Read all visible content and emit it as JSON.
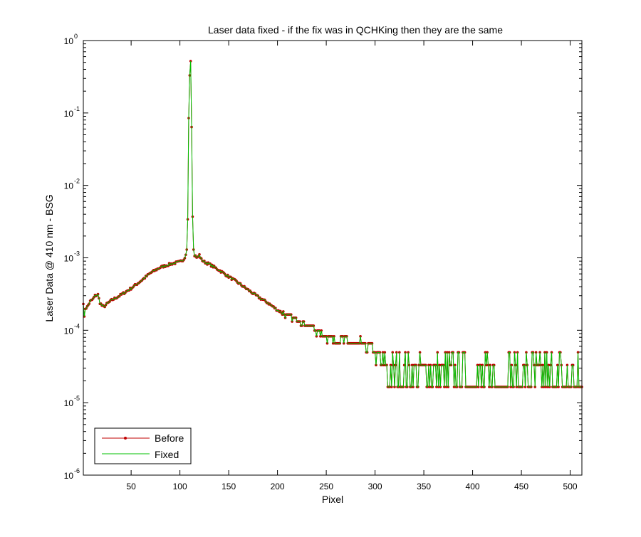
{
  "chart_data": {
    "type": "line",
    "title": "Laser data fixed - if the fix was in QCHKing then they are the same",
    "xlabel": "Pixel",
    "ylabel": "Laser Data @ 410 nm - BSG",
    "xlim": [
      1,
      512
    ],
    "ylim": [
      1e-06,
      1
    ],
    "yscale": "log",
    "grid": false,
    "legend_position": "bottom-left",
    "x_ticks": [
      50,
      100,
      150,
      200,
      250,
      300,
      350,
      400,
      450,
      500
    ],
    "x_tick_labels": [
      "50",
      "100",
      "150",
      "200",
      "250",
      "300",
      "350",
      "400",
      "450",
      "500"
    ],
    "y_ticks": [
      {
        "base": "10",
        "exp": "0"
      },
      {
        "base": "10",
        "exp": "-1"
      },
      {
        "base": "10",
        "exp": "-2"
      },
      {
        "base": "10",
        "exp": "-3"
      },
      {
        "base": "10",
        "exp": "-4"
      },
      {
        "base": "10",
        "exp": "-5"
      },
      {
        "base": "10",
        "exp": "-6"
      }
    ],
    "anchors": [
      [
        1,
        0.00024
      ],
      [
        2,
        0.00015
      ],
      [
        3,
        0.0002
      ],
      [
        5,
        0.00021
      ],
      [
        8,
        0.00025
      ],
      [
        11,
        0.00027
      ],
      [
        13,
        0.0003
      ],
      [
        16,
        0.00031
      ],
      [
        18,
        0.00024
      ],
      [
        20,
        0.00022
      ],
      [
        22,
        0.00021
      ],
      [
        25,
        0.00023
      ],
      [
        30,
        0.00026
      ],
      [
        40,
        0.00031
      ],
      [
        50,
        0.00038
      ],
      [
        60,
        0.00048
      ],
      [
        70,
        0.00062
      ],
      [
        80,
        0.00074
      ],
      [
        90,
        0.00082
      ],
      [
        100,
        0.00088
      ],
      [
        104,
        0.00096
      ],
      [
        106,
        0.0011
      ],
      [
        107,
        0.0013
      ],
      [
        108,
        0.0034
      ],
      [
        109,
        0.085
      ],
      [
        110,
        0.33
      ],
      [
        111,
        0.52
      ],
      [
        112,
        0.064
      ],
      [
        113,
        0.0037
      ],
      [
        114,
        0.0013
      ],
      [
        115,
        0.0011
      ],
      [
        118,
        0.001
      ],
      [
        120,
        0.0011
      ],
      [
        122,
        0.00095
      ],
      [
        125,
        0.00088
      ],
      [
        130,
        0.00082
      ],
      [
        140,
        0.00068
      ],
      [
        150,
        0.00055
      ],
      [
        160,
        0.00045
      ],
      [
        170,
        0.00036
      ],
      [
        180,
        0.00029
      ],
      [
        190,
        0.00024
      ],
      [
        200,
        0.00019
      ],
      [
        210,
        0.00016
      ],
      [
        220,
        0.00014
      ],
      [
        230,
        0.00012
      ],
      [
        240,
        0.0001
      ],
      [
        250,
        8.3e-05
      ],
      [
        260,
        7.5e-05
      ],
      [
        270,
        7e-05
      ],
      [
        280,
        6.6e-05
      ],
      [
        290,
        6.2e-05
      ],
      [
        300,
        5e-05
      ],
      [
        310,
        3.3e-05
      ],
      [
        320,
        3.3e-05
      ],
      [
        335,
        3.3e-05
      ],
      [
        350,
        2.5e-05
      ],
      [
        400,
        2.2e-05
      ],
      [
        512,
        2e-05
      ]
    ],
    "series": [
      {
        "name": "Before",
        "color": "#c00000",
        "marker": "dot"
      },
      {
        "name": "Fixed",
        "color": "#00c000",
        "marker": "none"
      }
    ]
  }
}
